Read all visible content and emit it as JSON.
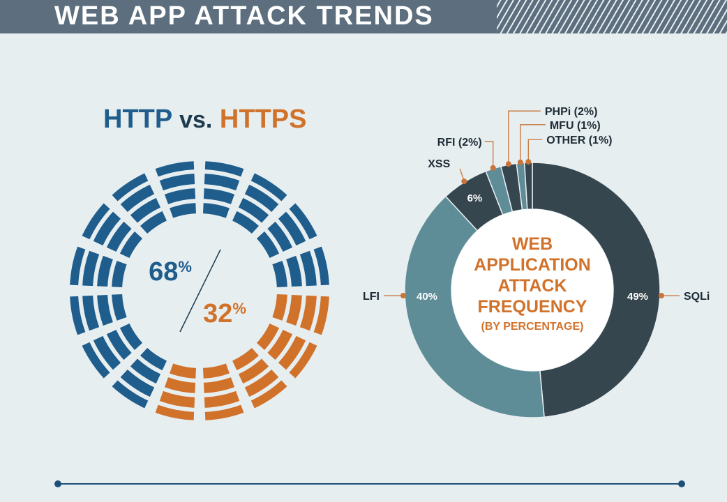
{
  "header": {
    "title": "WEB APP ATTACK TRENDS"
  },
  "colors": {
    "http": "#1f5d8c",
    "https": "#d1722b",
    "sqli": "#36464f",
    "lfi": "#5e8c97",
    "xss": "#36464f",
    "rfi": "#5e8c97",
    "phpi": "#36464f",
    "mfu": "#5e8c97",
    "other": "#36464f",
    "center_text": "#d1722b",
    "callout": "#c8743a"
  },
  "chart_data": [
    {
      "type": "pie",
      "title_parts": {
        "left": "HTTP",
        "mid": "vs.",
        "right": "HTTPS"
      },
      "series": [
        {
          "name": "HTTP",
          "value": 68,
          "label": "68",
          "unit": "%"
        },
        {
          "name": "HTTPS",
          "value": 32,
          "label": "32",
          "unit": "%"
        }
      ]
    },
    {
      "type": "pie",
      "center_label": [
        "WEB",
        "APPLICATION",
        "ATTACK",
        "FREQUENCY"
      ],
      "center_sub": "(BY PERCENTAGE)",
      "slices": [
        {
          "key": "sqli",
          "name": "SQLi",
          "value": 49,
          "label": "49%"
        },
        {
          "key": "lfi",
          "name": "LFI",
          "value": 40,
          "label": "40%"
        },
        {
          "key": "xss",
          "name": "XSS",
          "value": 6,
          "label": "6%"
        },
        {
          "key": "rfi",
          "name": "RFI (2%)",
          "value": 2,
          "label": ""
        },
        {
          "key": "phpi",
          "name": "PHPi (2%)",
          "value": 2,
          "label": ""
        },
        {
          "key": "mfu",
          "name": "MFU (1%)",
          "value": 1,
          "label": ""
        },
        {
          "key": "other",
          "name": "OTHER (1%)",
          "value": 1,
          "label": ""
        }
      ]
    }
  ]
}
